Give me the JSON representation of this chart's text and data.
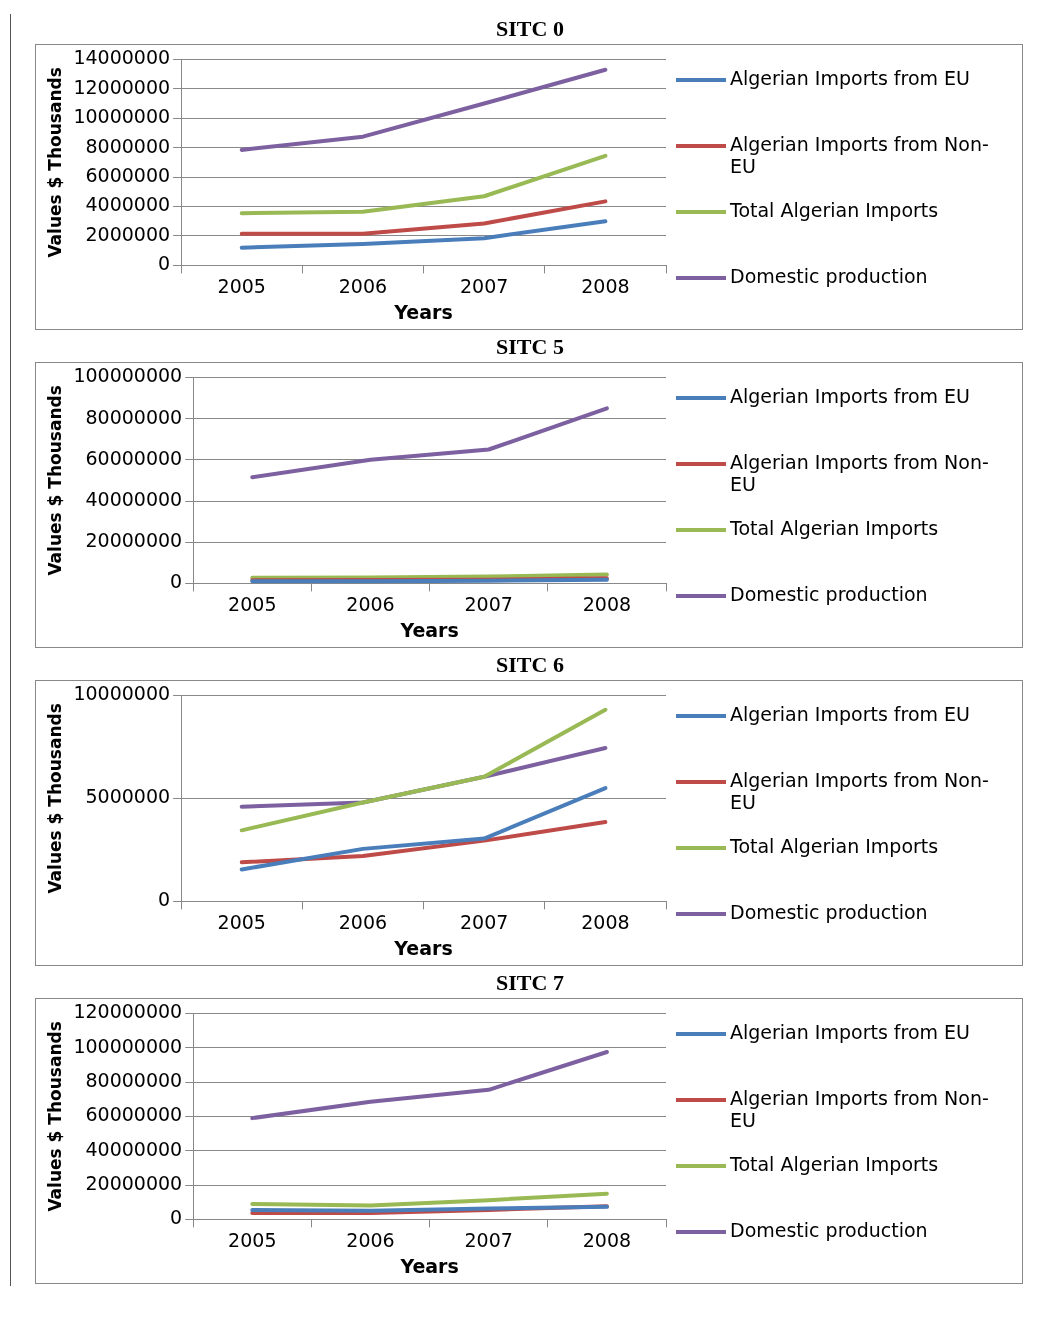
{
  "chart_data": [
    {
      "type": "line",
      "title": "SITC 0",
      "xlabel": "Years",
      "ylabel": "Values $ Thousands",
      "categories": [
        "2005",
        "2006",
        "2007",
        "2008"
      ],
      "series": [
        {
          "name": "Algerian Imports from EU",
          "color": "#4a7ebb",
          "values": [
            1200000,
            1450000,
            1850000,
            3000000
          ]
        },
        {
          "name": "Algerian Imports from Non-EU",
          "color": "#be4b48",
          "values": [
            2150000,
            2150000,
            2850000,
            4350000
          ]
        },
        {
          "name": "Total Algerian Imports",
          "color": "#98b954",
          "values": [
            3550000,
            3650000,
            4700000,
            7450000
          ]
        },
        {
          "name": "Domestic production",
          "color": "#7d60a0",
          "values": [
            7850000,
            8750000,
            11000000,
            13300000
          ]
        }
      ],
      "ylim": [
        0,
        14000000
      ],
      "yticks": [
        0,
        2000000,
        4000000,
        6000000,
        8000000,
        10000000,
        12000000,
        14000000
      ],
      "grid": "y",
      "legend": "right",
      "marker": "none"
    },
    {
      "type": "line",
      "title": "SITC 5",
      "xlabel": "Years",
      "ylabel": "Values $ Thousands",
      "categories": [
        "2005",
        "2006",
        "2007",
        "2008"
      ],
      "series": [
        {
          "name": "Algerian Imports from EU",
          "color": "#4a7ebb",
          "values": [
            1000000,
            1100000,
            1300000,
            1800000
          ]
        },
        {
          "name": "Algerian Imports from Non-EU",
          "color": "#be4b48",
          "values": [
            1500000,
            1600000,
            1800000,
            2500000
          ]
        },
        {
          "name": "Total Algerian Imports",
          "color": "#98b954",
          "values": [
            2700000,
            2900000,
            3300000,
            4300000
          ]
        },
        {
          "name": "Domestic production",
          "color": "#7d60a0",
          "values": [
            51500000,
            60000000,
            65000000,
            85000000
          ]
        }
      ],
      "ylim": [
        0,
        100000000
      ],
      "yticks": [
        0,
        20000000,
        40000000,
        60000000,
        80000000,
        100000000
      ],
      "grid": "y",
      "legend": "right",
      "marker": "none"
    },
    {
      "type": "line",
      "title": "SITC 6",
      "xlabel": "Years",
      "ylabel": "Values $ Thousands",
      "categories": [
        "2005",
        "2006",
        "2007",
        "2008"
      ],
      "series": [
        {
          "name": "Algerian Imports from EU",
          "color": "#4a7ebb",
          "values": [
            1550000,
            2550000,
            3050000,
            5500000
          ]
        },
        {
          "name": "Algerian Imports from Non-EU",
          "color": "#be4b48",
          "values": [
            1900000,
            2200000,
            2950000,
            3850000
          ]
        },
        {
          "name": "Total Algerian Imports",
          "color": "#98b954",
          "values": [
            3450000,
            4800000,
            6050000,
            9300000
          ]
        },
        {
          "name": "Domestic production",
          "color": "#7d60a0",
          "values": [
            4600000,
            4800000,
            6050000,
            7450000
          ]
        }
      ],
      "ylim": [
        0,
        10000000
      ],
      "yticks": [
        0,
        5000000,
        10000000
      ],
      "grid": "y",
      "legend": "right",
      "marker": "none"
    },
    {
      "type": "line",
      "title": "SITC 7",
      "xlabel": "Years",
      "ylabel": "Values $ Thousands",
      "categories": [
        "2005",
        "2006",
        "2007",
        "2008"
      ],
      "series": [
        {
          "name": "Algerian Imports from EU",
          "color": "#4a7ebb",
          "values": [
            5500000,
            5000000,
            6400000,
            7300000
          ]
        },
        {
          "name": "Algerian Imports from Non-EU",
          "color": "#be4b48",
          "values": [
            3800000,
            3800000,
            5500000,
            7600000
          ]
        },
        {
          "name": "Total Algerian Imports",
          "color": "#98b954",
          "values": [
            9000000,
            8100000,
            11200000,
            15000000
          ]
        },
        {
          "name": "Domestic production",
          "color": "#7d60a0",
          "values": [
            59000000,
            68500000,
            75500000,
            97500000
          ]
        }
      ],
      "ylim": [
        0,
        120000000
      ],
      "yticks": [
        0,
        20000000,
        40000000,
        60000000,
        80000000,
        100000000,
        120000000
      ],
      "grid": "y",
      "legend": "right",
      "marker": "none"
    }
  ]
}
